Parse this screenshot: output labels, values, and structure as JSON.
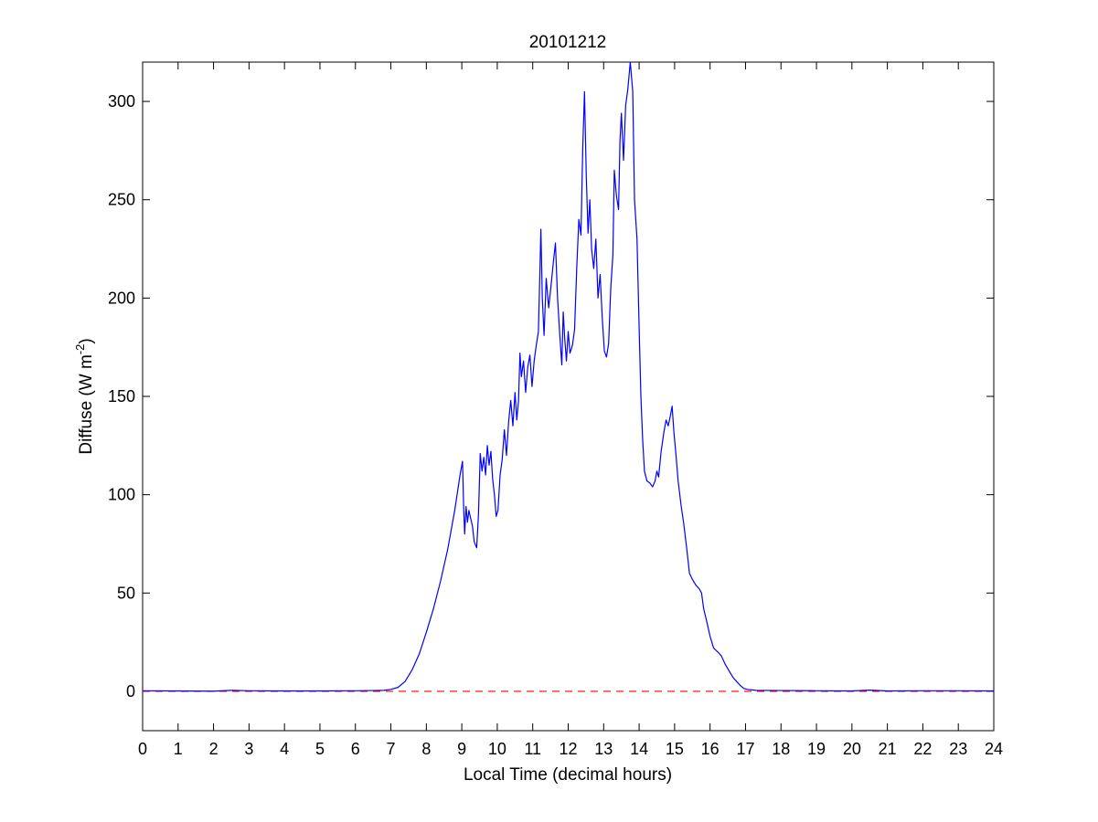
{
  "chart_data": {
    "type": "line",
    "title": "20101212",
    "xlabel": "Local Time (decimal hours)",
    "ylabel": {
      "base": "Diffuse (W m",
      "superscript": "-2",
      "suffix": ")"
    },
    "xlim": [
      0,
      24
    ],
    "ylim": [
      -20,
      320
    ],
    "xticks": [
      0,
      1,
      2,
      3,
      4,
      5,
      6,
      7,
      8,
      9,
      10,
      11,
      12,
      13,
      14,
      15,
      16,
      17,
      18,
      19,
      20,
      21,
      22,
      23,
      24
    ],
    "yticks": [
      0,
      50,
      100,
      150,
      200,
      250,
      300
    ],
    "grid": false,
    "reference_line": {
      "y": 0,
      "style": "dashed",
      "color": "#ff0000"
    },
    "series": [
      {
        "color": "#0000ff",
        "points": [
          [
            0,
            0.3
          ],
          [
            1,
            0.2
          ],
          [
            2,
            0.1
          ],
          [
            2.5,
            0.5
          ],
          [
            3,
            0.3
          ],
          [
            4,
            0.2
          ],
          [
            5,
            0.2
          ],
          [
            6,
            0.3
          ],
          [
            6.5,
            0.4
          ],
          [
            6.8,
            0.5
          ],
          [
            7.0,
            1
          ],
          [
            7.2,
            2
          ],
          [
            7.4,
            5
          ],
          [
            7.6,
            11
          ],
          [
            7.8,
            19
          ],
          [
            8.0,
            30
          ],
          [
            8.2,
            42
          ],
          [
            8.4,
            56
          ],
          [
            8.6,
            72
          ],
          [
            8.8,
            92
          ],
          [
            8.95,
            110
          ],
          [
            9.02,
            117
          ],
          [
            9.05,
            95
          ],
          [
            9.08,
            80
          ],
          [
            9.12,
            94
          ],
          [
            9.16,
            86
          ],
          [
            9.2,
            92
          ],
          [
            9.25,
            88
          ],
          [
            9.3,
            84
          ],
          [
            9.35,
            76
          ],
          [
            9.42,
            73
          ],
          [
            9.47,
            90
          ],
          [
            9.52,
            121
          ],
          [
            9.57,
            112
          ],
          [
            9.62,
            119
          ],
          [
            9.67,
            110
          ],
          [
            9.72,
            125
          ],
          [
            9.77,
            115
          ],
          [
            9.82,
            122
          ],
          [
            9.87,
            108
          ],
          [
            9.92,
            100
          ],
          [
            9.97,
            89
          ],
          [
            10.02,
            92
          ],
          [
            10.08,
            110
          ],
          [
            10.14,
            118
          ],
          [
            10.2,
            133
          ],
          [
            10.26,
            120
          ],
          [
            10.32,
            137
          ],
          [
            10.38,
            148
          ],
          [
            10.44,
            135
          ],
          [
            10.5,
            152
          ],
          [
            10.55,
            138
          ],
          [
            10.6,
            148
          ],
          [
            10.64,
            172
          ],
          [
            10.68,
            160
          ],
          [
            10.74,
            168
          ],
          [
            10.8,
            152
          ],
          [
            10.86,
            165
          ],
          [
            10.92,
            171
          ],
          [
            10.98,
            155
          ],
          [
            11.04,
            168
          ],
          [
            11.1,
            176
          ],
          [
            11.16,
            183
          ],
          [
            11.2,
            212
          ],
          [
            11.23,
            235
          ],
          [
            11.27,
            200
          ],
          [
            11.32,
            181
          ],
          [
            11.38,
            210
          ],
          [
            11.45,
            195
          ],
          [
            11.52,
            207
          ],
          [
            11.58,
            218
          ],
          [
            11.64,
            228
          ],
          [
            11.7,
            200
          ],
          [
            11.76,
            182
          ],
          [
            11.82,
            166
          ],
          [
            11.86,
            193
          ],
          [
            11.9,
            180
          ],
          [
            11.95,
            168
          ],
          [
            12.0,
            183
          ],
          [
            12.05,
            172
          ],
          [
            12.12,
            176
          ],
          [
            12.18,
            184
          ],
          [
            12.24,
            215
          ],
          [
            12.3,
            240
          ],
          [
            12.36,
            232
          ],
          [
            12.41,
            276
          ],
          [
            12.46,
            305
          ],
          [
            12.51,
            262
          ],
          [
            12.56,
            233
          ],
          [
            12.61,
            250
          ],
          [
            12.66,
            225
          ],
          [
            12.72,
            215
          ],
          [
            12.78,
            230
          ],
          [
            12.84,
            200
          ],
          [
            12.9,
            212
          ],
          [
            12.96,
            190
          ],
          [
            13.02,
            173
          ],
          [
            13.08,
            170
          ],
          [
            13.14,
            177
          ],
          [
            13.2,
            205
          ],
          [
            13.26,
            222
          ],
          [
            13.3,
            265
          ],
          [
            13.36,
            252
          ],
          [
            13.42,
            245
          ],
          [
            13.46,
            280
          ],
          [
            13.5,
            294
          ],
          [
            13.56,
            270
          ],
          [
            13.62,
            298
          ],
          [
            13.68,
            306
          ],
          [
            13.75,
            320
          ],
          [
            13.82,
            305
          ],
          [
            13.87,
            250
          ],
          [
            13.94,
            230
          ],
          [
            14.0,
            185
          ],
          [
            14.05,
            150
          ],
          [
            14.1,
            128
          ],
          [
            14.15,
            112
          ],
          [
            14.22,
            107
          ],
          [
            14.3,
            106
          ],
          [
            14.38,
            104
          ],
          [
            14.45,
            107
          ],
          [
            14.5,
            112
          ],
          [
            14.55,
            109
          ],
          [
            14.62,
            122
          ],
          [
            14.7,
            132
          ],
          [
            14.76,
            138
          ],
          [
            14.82,
            135
          ],
          [
            14.88,
            140
          ],
          [
            14.93,
            145
          ],
          [
            14.98,
            132
          ],
          [
            15.04,
            120
          ],
          [
            15.1,
            107
          ],
          [
            15.18,
            95
          ],
          [
            15.26,
            85
          ],
          [
            15.34,
            73
          ],
          [
            15.42,
            60
          ],
          [
            15.5,
            57
          ],
          [
            15.6,
            54
          ],
          [
            15.7,
            52
          ],
          [
            15.76,
            50
          ],
          [
            15.82,
            42
          ],
          [
            15.9,
            36
          ],
          [
            16.0,
            28
          ],
          [
            16.1,
            22
          ],
          [
            16.22,
            20
          ],
          [
            16.32,
            18
          ],
          [
            16.42,
            14
          ],
          [
            16.55,
            10
          ],
          [
            16.65,
            7
          ],
          [
            16.75,
            5
          ],
          [
            16.85,
            3
          ],
          [
            16.95,
            1.5
          ],
          [
            17.05,
            1
          ],
          [
            17.3,
            0.5
          ],
          [
            18,
            0.4
          ],
          [
            19,
            0.3
          ],
          [
            20,
            0.2
          ],
          [
            20.5,
            0.6
          ],
          [
            21,
            0.2
          ],
          [
            22,
            0.3
          ],
          [
            23,
            0.3
          ],
          [
            24,
            0.2
          ]
        ]
      }
    ]
  }
}
